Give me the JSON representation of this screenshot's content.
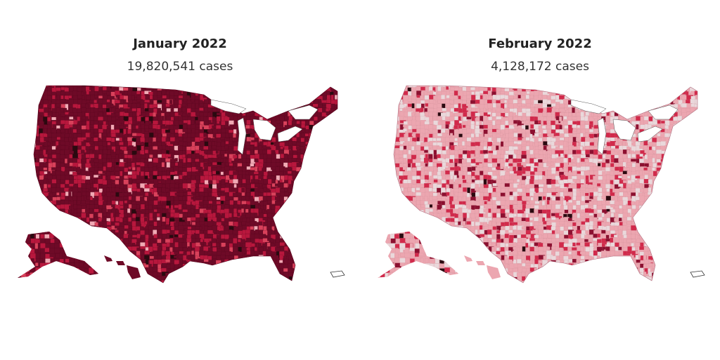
{
  "panels": [
    {
      "title": "January 2022",
      "subtitle": "19,820,541 cases",
      "base_color": "#6e0a27",
      "scheme": [
        "#2a0a10",
        "#6e0a27",
        "#b8173d",
        "#d9415b",
        "#f1aab5"
      ],
      "weights": [
        0.03,
        0.62,
        0.25,
        0.07,
        0.03
      ],
      "lakes_color": "#ffffff"
    },
    {
      "title": "February 2022",
      "subtitle": "4,128,172 cases",
      "base_color": "#eca6b0",
      "scheme": [
        "#2a0a10",
        "#8c1030",
        "#d12a4b",
        "#eca6b0",
        "#ead8db"
      ],
      "weights": [
        0.01,
        0.06,
        0.16,
        0.52,
        0.25
      ],
      "lakes_color": "#ffffff"
    }
  ]
}
